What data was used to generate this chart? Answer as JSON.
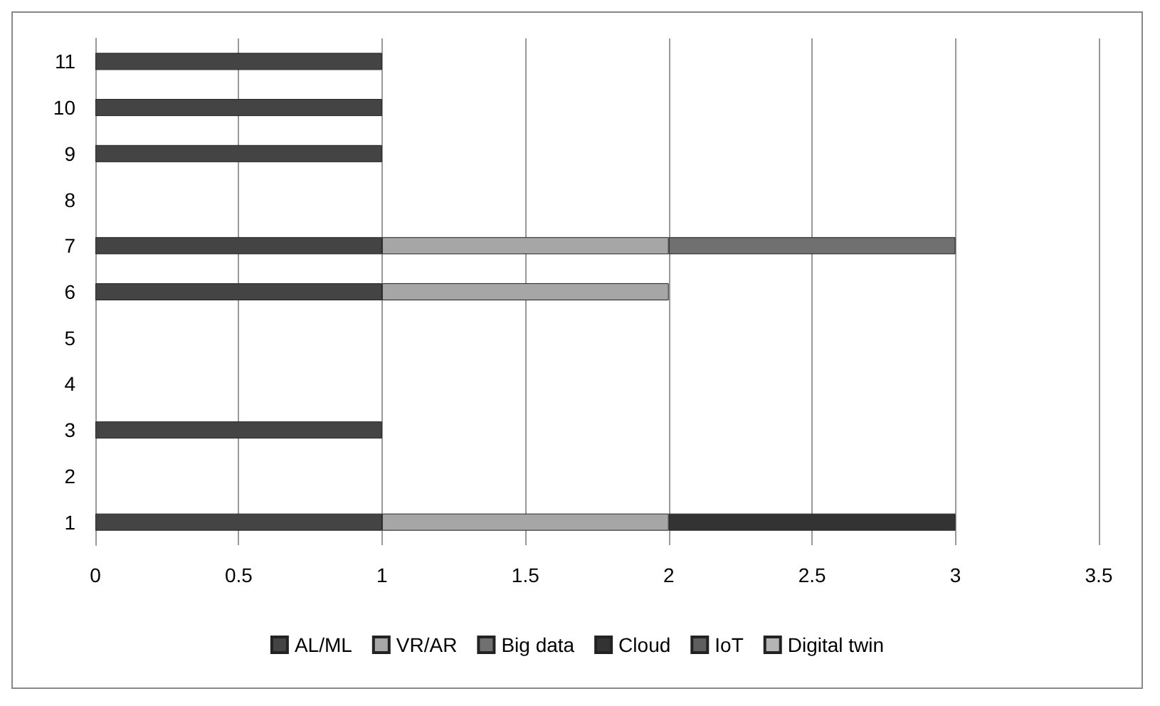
{
  "chart_data": {
    "type": "bar",
    "orientation": "horizontal",
    "stacked": true,
    "categories": [
      "11",
      "10",
      "9",
      "8",
      "7",
      "6",
      "5",
      "4",
      "3",
      "2",
      "1"
    ],
    "series": [
      {
        "name": "AL/ML",
        "color": "#444444",
        "values": [
          1,
          1,
          1,
          null,
          1,
          1,
          null,
          null,
          1,
          null,
          1
        ]
      },
      {
        "name": "VR/AR",
        "color": "#a6a6a6",
        "values": [
          null,
          null,
          null,
          null,
          1,
          1,
          null,
          null,
          null,
          null,
          1
        ]
      },
      {
        "name": "Big data",
        "color": "#707070",
        "values": [
          null,
          null,
          null,
          null,
          1,
          null,
          null,
          null,
          null,
          null,
          null
        ]
      },
      {
        "name": "Cloud",
        "color": "#333333",
        "values": [
          null,
          null,
          null,
          null,
          null,
          null,
          null,
          null,
          null,
          null,
          1
        ]
      },
      {
        "name": "IoT",
        "color": "#5e5e5e",
        "values": [
          null,
          null,
          null,
          null,
          null,
          null,
          null,
          null,
          null,
          null,
          null
        ]
      },
      {
        "name": "Digital twin",
        "color": "#b5b5b5",
        "values": [
          null,
          null,
          null,
          null,
          null,
          null,
          null,
          null,
          null,
          null,
          null
        ]
      }
    ],
    "xlim": [
      0,
      3.5
    ],
    "xticks": [
      0,
      0.5,
      1,
      1.5,
      2,
      2.5,
      3,
      3.5
    ],
    "grid": "x",
    "legend": "bottom"
  }
}
